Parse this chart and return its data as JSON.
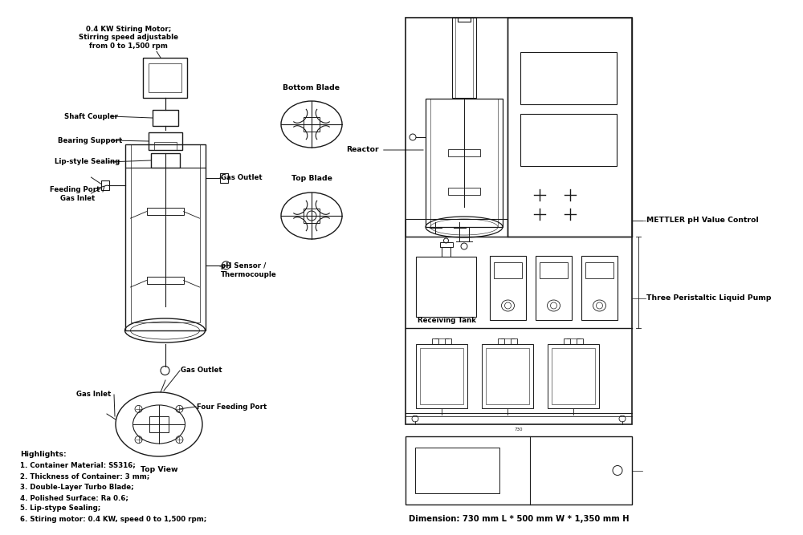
{
  "bg_color": "#ffffff",
  "line_color": "#1a1a1a",
  "left_labels": {
    "motor_label": "0.4 KW Stiring Motor;\nStirring speed adjustable\nfrom 0 to 1,500 rpm",
    "shaft_coupler": "Shaft Coupler",
    "bearing_support": "Bearing Support",
    "lip_sealing": "Lip-style Sealing",
    "feeding_port": "Feeding Port /\nGas Inlet",
    "gas_outlet": "Gas Outlet",
    "ph_sensor": "pH Sensor /\nThermocouple",
    "gas_inlet_bottom": "Gas Inlet",
    "gas_outlet_bottom": "Gas Outlet",
    "four_feeding": "Four Feeding Port",
    "top_view": "Top View",
    "bottom_blade": "Bottom Blade",
    "top_blade": "Top Blade"
  },
  "right_labels": {
    "reactor": "Reactor",
    "receiving_tank": "Receiving Tank",
    "mettler": "METTLER pH Value Control",
    "three_pump": "Three Peristaltic Liquid Pump"
  },
  "highlights_title": "Highlights:",
  "highlights": [
    "1. Container Material: SS316;",
    "2. Thickness of Container: 3 mm;",
    "3. Double-Layer Turbo Blade;",
    "4. Polished Surface: Ra 0.6;",
    "5. Lip-stype Sealing;",
    "6. Stiring motor: 0.4 KW, speed 0 to 1,500 rpm;"
  ],
  "dimension_text": "Dimension: 730 mm L * 500 mm W * 1,350 mm H"
}
